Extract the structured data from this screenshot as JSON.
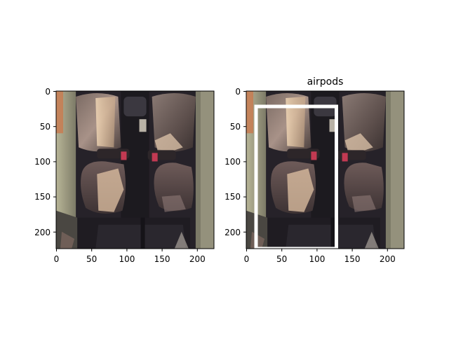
{
  "figure": {
    "background": "#ffffff",
    "panels": [
      {
        "title": "",
        "image_content": "car rear seats viewed from above",
        "x_ticks": [
          "0",
          "50",
          "100",
          "150",
          "200"
        ],
        "y_ticks": [
          "0",
          "50",
          "100",
          "150",
          "200"
        ],
        "extent": [
          0,
          224
        ]
      },
      {
        "title": "airpods",
        "image_content": "car rear seats viewed from above with bounding box overlay",
        "x_ticks": [
          "0",
          "50",
          "100",
          "150",
          "200"
        ],
        "y_ticks": [
          "0",
          "50",
          "100",
          "150",
          "200"
        ],
        "extent": [
          0,
          224
        ],
        "bbox": {
          "x0": 14,
          "y0": 22,
          "x1": 128,
          "y1": 224,
          "color": "#ffffff"
        }
      }
    ]
  }
}
